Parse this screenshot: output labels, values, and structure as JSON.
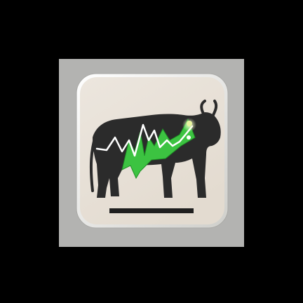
{
  "icon": {
    "name": "bull-market-app-icon",
    "colors": {
      "background": "#000000",
      "backdrop": "#b3b3b1",
      "tile_face": "#e9e2d9",
      "tile_rim": "#f4f3ef",
      "silhouette": "#2b2b2b",
      "chart_green": "#3cc341",
      "chart_line": "#ffffff",
      "highlight": "#e8f5a0",
      "baseline_bar": "#1f1f1f"
    }
  }
}
